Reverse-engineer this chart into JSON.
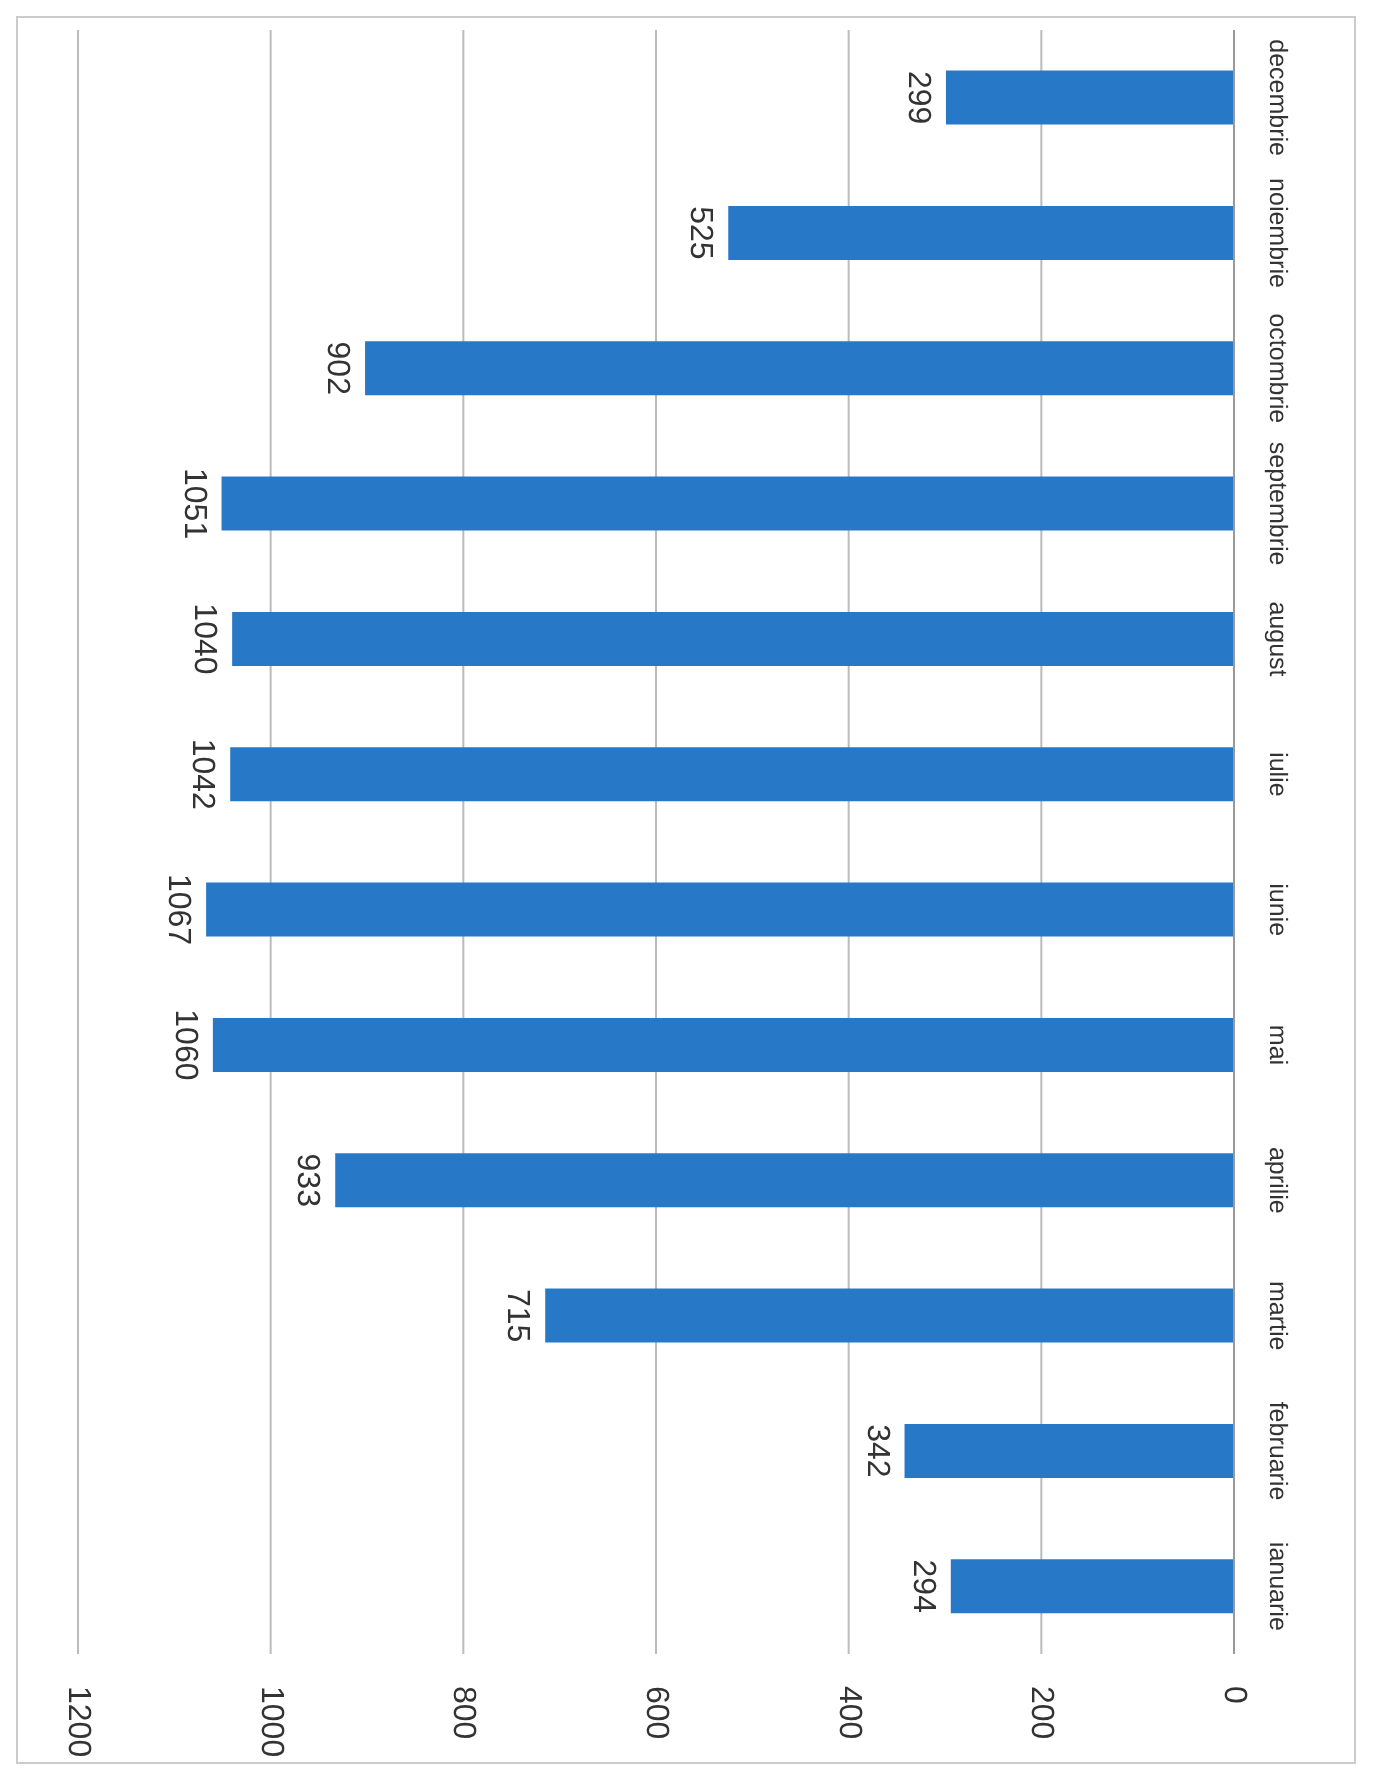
{
  "chart_data": {
    "type": "bar",
    "orientation": "horizontal",
    "categories": [
      "decembrie",
      "noiembrie",
      "octombrie",
      "septembrie",
      "august",
      "iulie",
      "iunie",
      "mai",
      "aprilie",
      "martie",
      "februarie",
      "ianuarie"
    ],
    "values": [
      299,
      525,
      902,
      1051,
      1040,
      1042,
      1067,
      1060,
      933,
      715,
      342,
      294
    ],
    "color": "#2878c8",
    "xlim": [
      1200,
      0
    ],
    "xticks": [
      0,
      200,
      400,
      600,
      800,
      1000,
      1200
    ],
    "grid": "x",
    "data_labels": true
  }
}
